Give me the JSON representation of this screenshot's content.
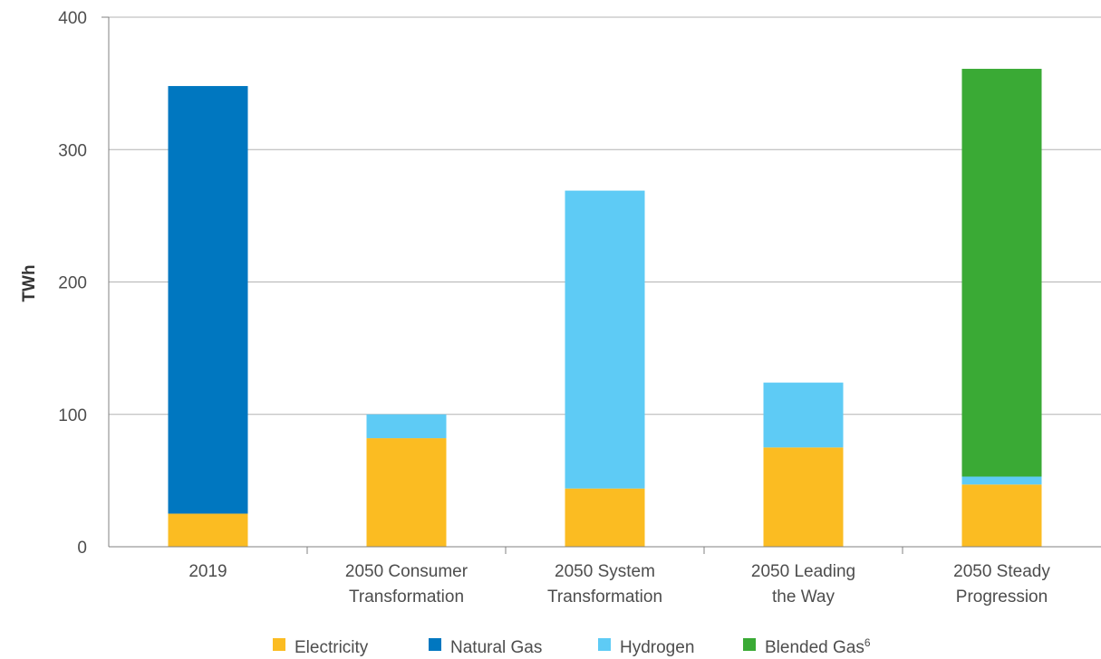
{
  "chart_data": {
    "type": "bar",
    "stacked": true,
    "categories": [
      [
        "2019"
      ],
      [
        "2050 Consumer",
        "Transformation"
      ],
      [
        "2050 System",
        "Transformation"
      ],
      [
        "2050 Leading",
        "the Way"
      ],
      [
        "2050 Steady",
        "Progression"
      ]
    ],
    "series": [
      {
        "name": "Electricity",
        "color": "#fbbc22",
        "values": [
          25,
          82,
          44,
          75,
          47
        ]
      },
      {
        "name": "Natural Gas",
        "color": "#0077c0",
        "values": [
          323,
          0,
          0,
          0,
          0
        ]
      },
      {
        "name": "Hydrogen",
        "color": "#5ecbf5",
        "values": [
          0,
          18,
          225,
          49,
          6
        ]
      },
      {
        "name": "Blended Gas",
        "name_superscript": "6",
        "color": "#3aaa35",
        "values": [
          0,
          0,
          0,
          0,
          308
        ]
      }
    ],
    "ylabel": "TWh",
    "ylim": [
      0,
      400
    ],
    "yticks": [
      "0",
      "100",
      "200",
      "300",
      "400"
    ],
    "grid": true,
    "legend_position": "bottom"
  }
}
